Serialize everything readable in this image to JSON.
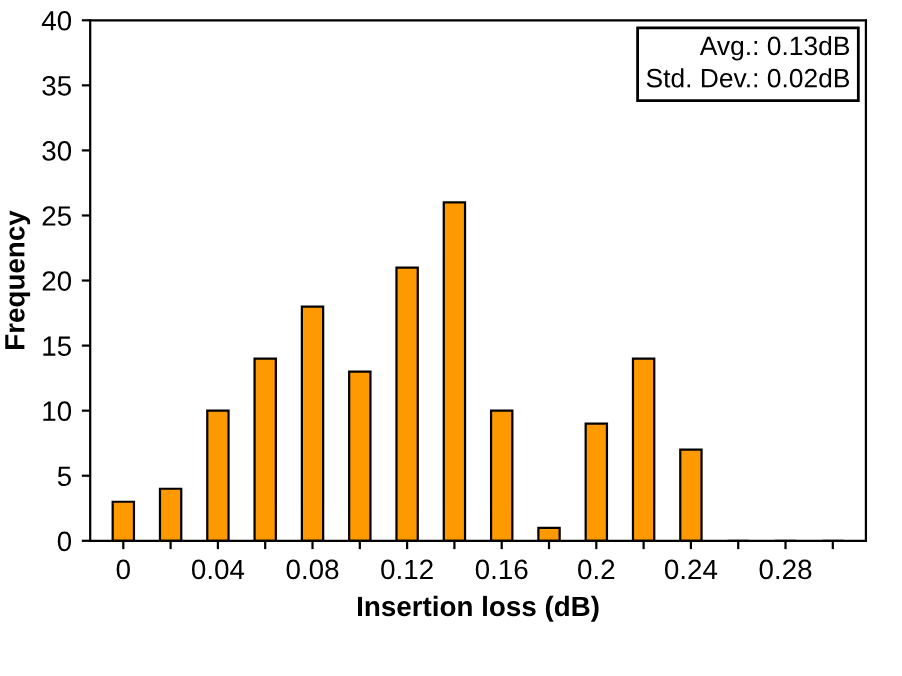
{
  "chart_data": {
    "type": "bar",
    "xlabel": "Insertion loss (dB)",
    "ylabel": "Frequency",
    "categories": [
      "0",
      null,
      "0.04",
      null,
      "0.08",
      null,
      "0.12",
      null,
      "0.16",
      null,
      "0.2",
      null,
      "0.24",
      null,
      "0.28",
      null
    ],
    "values": [
      3,
      4,
      10,
      14,
      18,
      13,
      21,
      26,
      10,
      1,
      9,
      14,
      7,
      0,
      0,
      0
    ],
    "color": "#ff9900",
    "ylim": [
      0,
      40
    ],
    "yticks": [
      0,
      5,
      10,
      15,
      20,
      25,
      30,
      35,
      40
    ],
    "grid": false,
    "annotations": [
      "Avg.: 0.13dB",
      "Std. Dev.: 0.02dB"
    ]
  }
}
